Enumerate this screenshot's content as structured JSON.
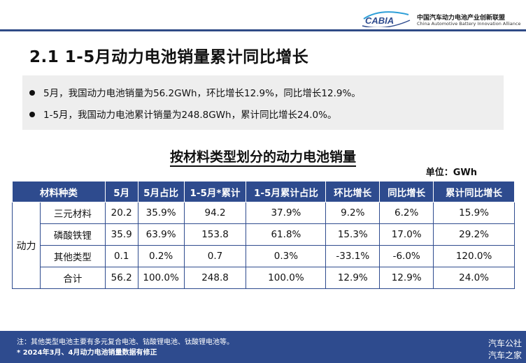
{
  "header": {
    "logo_text": "CABIA",
    "org_cn": "中国汽车动力电池产业创新联盟",
    "org_en": "China Automotive Battery Innovation Alliance",
    "accent_color": "#2e4b8e"
  },
  "title": "2.1 1-5月动力电池销量累计同比增长",
  "summary": [
    "5月，我国动力电池销量为56.2GWh，环比增长12.9%，同比增长12.9%。",
    "1-5月，我国动力电池累计销量为248.8GWh，累计同比增长24.0%。"
  ],
  "table": {
    "title": "按材料类型划分的动力电池销量",
    "unit": "单位：GWh",
    "headers": [
      "材料种类",
      "5月",
      "5月占比",
      "1-5月*累计",
      "1-5月累计占比",
      "环比增长",
      "同比增长",
      "累计同比增长"
    ],
    "group_label": "动力",
    "rows": [
      [
        "三元材料",
        "20.2",
        "35.9%",
        "94.2",
        "37.9%",
        "9.2%",
        "6.2%",
        "15.9%"
      ],
      [
        "磷酸铁锂",
        "35.9",
        "63.9%",
        "153.8",
        "61.8%",
        "15.3%",
        "17.0%",
        "29.2%"
      ],
      [
        "其他类型",
        "0.1",
        "0.2%",
        "0.7",
        "0.3%",
        "-33.1%",
        "-6.0%",
        "120.0%"
      ],
      [
        "合计",
        "56.2",
        "100.0%",
        "248.8",
        "100.0%",
        "12.9%",
        "12.9%",
        "24.0%"
      ]
    ]
  },
  "footer": {
    "note1": "注：其他类型电池主要有多元复合电池、钴酸锂电池、钛酸锂电池等。",
    "note2": "* 2024年3月、4月动力电池销量数据有修正",
    "watermark1": "汽车公社",
    "watermark2": "汽车之家"
  }
}
